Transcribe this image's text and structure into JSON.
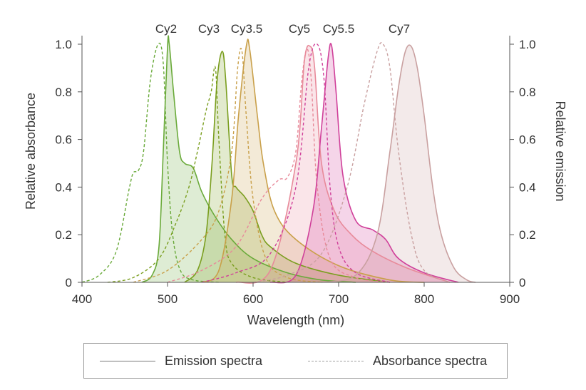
{
  "chart_data": {
    "type": "line",
    "xlabel": "Wavelength (nm)",
    "ylabel_left": "Relative absorbance",
    "ylabel_right": "Relative emission",
    "xlim": [
      400,
      900
    ],
    "ylim": [
      0,
      1.0
    ],
    "xticks": [
      "400",
      "500",
      "600",
      "700",
      "800",
      "900"
    ],
    "yticks": [
      "0",
      "0.2",
      "0.4",
      "0.6",
      "0.8",
      "1.0"
    ],
    "legend": {
      "solid": "Emission spectra",
      "dashed": "Absorbance spectra"
    },
    "series": [
      {
        "name": "Cy2",
        "color": "#6aaa3a",
        "absorbance": [
          [
            400,
            0
          ],
          [
            420,
            0.03
          ],
          [
            440,
            0.13
          ],
          [
            455,
            0.39
          ],
          [
            460,
            0.46
          ],
          [
            466,
            0.47
          ],
          [
            472,
            0.55
          ],
          [
            480,
            0.85
          ],
          [
            489,
            1.0
          ],
          [
            495,
            0.92
          ],
          [
            500,
            0.5
          ],
          [
            506,
            0.2
          ],
          [
            515,
            0.05
          ],
          [
            530,
            0.01
          ],
          [
            560,
            0
          ]
        ],
        "emission": [
          [
            470,
            0
          ],
          [
            482,
            0.03
          ],
          [
            490,
            0.15
          ],
          [
            495,
            0.55
          ],
          [
            500,
            0.99
          ],
          [
            502,
            1.0
          ],
          [
            507,
            0.8
          ],
          [
            514,
            0.55
          ],
          [
            520,
            0.5
          ],
          [
            530,
            0.48
          ],
          [
            540,
            0.38
          ],
          [
            555,
            0.28
          ],
          [
            575,
            0.18
          ],
          [
            600,
            0.1
          ],
          [
            640,
            0.04
          ],
          [
            680,
            0.01
          ],
          [
            720,
            0
          ]
        ]
      },
      {
        "name": "Cy3",
        "color": "#7a9e1e",
        "absorbance": [
          [
            430,
            0
          ],
          [
            460,
            0.02
          ],
          [
            490,
            0.1
          ],
          [
            510,
            0.25
          ],
          [
            525,
            0.4
          ],
          [
            535,
            0.55
          ],
          [
            545,
            0.72
          ],
          [
            551,
            0.8
          ],
          [
            556,
            0.9
          ],
          [
            560,
            0.6
          ],
          [
            567,
            0.2
          ],
          [
            575,
            0.08
          ],
          [
            600,
            0.02
          ],
          [
            640,
            0
          ]
        ],
        "emission": [
          [
            520,
            0
          ],
          [
            535,
            0.05
          ],
          [
            545,
            0.2
          ],
          [
            552,
            0.5
          ],
          [
            558,
            0.85
          ],
          [
            564,
            0.97
          ],
          [
            568,
            0.85
          ],
          [
            575,
            0.45
          ],
          [
            580,
            0.4
          ],
          [
            590,
            0.36
          ],
          [
            600,
            0.3
          ],
          [
            610,
            0.2
          ],
          [
            620,
            0.15
          ],
          [
            650,
            0.08
          ],
          [
            700,
            0.03
          ],
          [
            760,
            0
          ]
        ]
      },
      {
        "name": "Cy3.5",
        "color": "#c9a04a",
        "absorbance": [
          [
            460,
            0
          ],
          [
            500,
            0.05
          ],
          [
            540,
            0.18
          ],
          [
            560,
            0.3
          ],
          [
            575,
            0.55
          ],
          [
            582,
            0.9
          ],
          [
            587,
            0.97
          ],
          [
            592,
            0.7
          ],
          [
            600,
            0.35
          ],
          [
            615,
            0.1
          ],
          [
            640,
            0.02
          ],
          [
            680,
            0
          ]
        ],
        "emission": [
          [
            540,
            0
          ],
          [
            560,
            0.05
          ],
          [
            575,
            0.35
          ],
          [
            583,
            0.7
          ],
          [
            592,
            0.99
          ],
          [
            596,
            0.98
          ],
          [
            605,
            0.7
          ],
          [
            612,
            0.5
          ],
          [
            625,
            0.3
          ],
          [
            650,
            0.18
          ],
          [
            700,
            0.07
          ],
          [
            760,
            0.01
          ],
          [
            800,
            0
          ]
        ]
      },
      {
        "name": "Cy5",
        "color": "#e88a9a",
        "absorbance": [
          [
            500,
            0
          ],
          [
            540,
            0.05
          ],
          [
            580,
            0.15
          ],
          [
            610,
            0.35
          ],
          [
            630,
            0.43
          ],
          [
            640,
            0.44
          ],
          [
            650,
            0.55
          ],
          [
            657,
            0.85
          ],
          [
            663,
            0.98
          ],
          [
            668,
            0.85
          ],
          [
            675,
            0.4
          ],
          [
            690,
            0.1
          ],
          [
            720,
            0.02
          ],
          [
            760,
            0
          ]
        ],
        "emission": [
          [
            580,
            0
          ],
          [
            620,
            0.05
          ],
          [
            650,
            0.5
          ],
          [
            660,
            0.93
          ],
          [
            667,
            0.99
          ],
          [
            672,
            0.9
          ],
          [
            680,
            0.5
          ],
          [
            695,
            0.3
          ],
          [
            715,
            0.2
          ],
          [
            740,
            0.13
          ],
          [
            780,
            0.06
          ],
          [
            830,
            0
          ]
        ]
      },
      {
        "name": "Cy5.5",
        "color": "#d0409a",
        "absorbance": [
          [
            540,
            0
          ],
          [
            580,
            0.04
          ],
          [
            620,
            0.12
          ],
          [
            650,
            0.4
          ],
          [
            665,
            0.9
          ],
          [
            675,
            1.0
          ],
          [
            683,
            0.85
          ],
          [
            690,
            0.4
          ],
          [
            700,
            0.15
          ],
          [
            720,
            0.04
          ],
          [
            760,
            0
          ]
        ],
        "emission": [
          [
            620,
            0
          ],
          [
            650,
            0.03
          ],
          [
            670,
            0.3
          ],
          [
            680,
            0.65
          ],
          [
            688,
            0.95
          ],
          [
            692,
            0.99
          ],
          [
            697,
            0.8
          ],
          [
            705,
            0.45
          ],
          [
            720,
            0.26
          ],
          [
            740,
            0.22
          ],
          [
            755,
            0.18
          ],
          [
            770,
            0.1
          ],
          [
            800,
            0.04
          ],
          [
            840,
            0
          ]
        ]
      },
      {
        "name": "Cy7",
        "color": "#c9a0a0",
        "absorbance": [
          [
            600,
            0
          ],
          [
            640,
            0.03
          ],
          [
            680,
            0.12
          ],
          [
            710,
            0.4
          ],
          [
            730,
            0.75
          ],
          [
            745,
            0.97
          ],
          [
            752,
            1.0
          ],
          [
            760,
            0.9
          ],
          [
            770,
            0.55
          ],
          [
            785,
            0.2
          ],
          [
            800,
            0.05
          ],
          [
            830,
            0
          ]
        ],
        "emission": [
          [
            680,
            0
          ],
          [
            720,
            0.03
          ],
          [
            745,
            0.2
          ],
          [
            760,
            0.55
          ],
          [
            770,
            0.82
          ],
          [
            778,
            0.97
          ],
          [
            785,
            0.99
          ],
          [
            792,
            0.9
          ],
          [
            800,
            0.7
          ],
          [
            810,
            0.4
          ],
          [
            820,
            0.2
          ],
          [
            835,
            0.06
          ],
          [
            850,
            0.01
          ],
          [
            860,
            0
          ]
        ]
      }
    ]
  }
}
